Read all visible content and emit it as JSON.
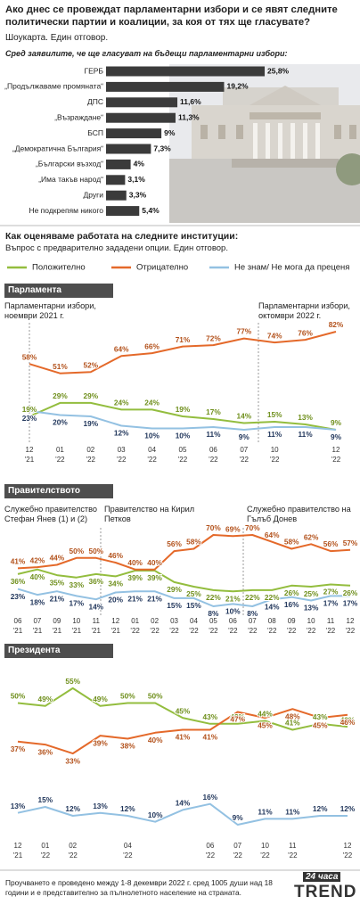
{
  "header": {
    "question": "Ако днес се провеждат парламентарни избори и се явят следните политически партии и коалиции, за коя от тях ще гласувате?",
    "method": "Шоукарта. Един отговор."
  },
  "section": {
    "title": "Как оценяваме работата на следните институции:",
    "subtitle": "Въпрос с предварително зададени опции. Един отговор."
  },
  "chart_data": [
    {
      "type": "bar",
      "orientation": "horizontal",
      "subtitle": "Сред заявилите, че ще гласуват на бъдещи парламентарни избори:",
      "categories": [
        "ГЕРБ",
        "„Продължаваме промяната“",
        "ДПС",
        "„Възраждане“",
        "БСП",
        "„Демократична България“",
        "„Български възход“",
        "„Има такъв народ“",
        "Други",
        "Не подкрепям никого"
      ],
      "values": [
        25.8,
        19.2,
        11.6,
        11.3,
        9,
        7.3,
        4,
        3.1,
        3.3,
        5.4
      ],
      "value_labels": [
        "25,8%",
        "19,2%",
        "11,6%",
        "11,3%",
        "9%",
        "7,3%",
        "4%",
        "3,1%",
        "3,3%",
        "5,4%"
      ],
      "color": "#3b3b3b"
    },
    {
      "type": "line",
      "title": "Парламента",
      "annotations": [
        "Парламентарни избори, ноември 2021 г.",
        "Парламентарни избори, октомври 2022 г."
      ],
      "categories": [
        "12 '21",
        "01 '22",
        "02 '22",
        "03 '22",
        "04 '22",
        "05 '22",
        "06 '22",
        "07 '22",
        "10 '22",
        null,
        "12 '22"
      ],
      "series": [
        {
          "name": "Положително",
          "color": "#93bd3e",
          "values": [
            19,
            29,
            29,
            24,
            24,
            19,
            17,
            14,
            15,
            13,
            9
          ],
          "value_labels": [
            "19%",
            "29%",
            "29%",
            "24%",
            "24%",
            "19%",
            "17%",
            "14%",
            "15%",
            "13%",
            "9%"
          ]
        },
        {
          "name": "Отрицателно",
          "color": "#e4692a",
          "values": [
            58,
            51,
            52,
            64,
            66,
            71,
            72,
            77,
            74,
            76,
            82
          ],
          "value_labels": [
            "58%",
            "51%",
            "52%",
            "64%",
            "66%",
            "71%",
            "72%",
            "77%",
            "74%",
            "76%",
            "82%"
          ]
        },
        {
          "name": "Не знам/ Не мога да преценя",
          "color": "#93c1e2",
          "values": [
            23,
            20,
            19,
            12,
            10,
            10,
            11,
            9,
            11,
            11,
            9
          ],
          "value_labels": [
            "23%",
            "20%",
            "19%",
            "12%",
            "10%",
            "10%",
            "11%",
            "9%",
            "11%",
            "11%",
            "9%"
          ]
        }
      ]
    },
    {
      "type": "line",
      "title": "Правителството",
      "annotations": [
        "Служебно правителство Стефан Янев (1) и (2)",
        "Правителство на Кирил Петков",
        "Служебно правителство на Гълъб Донев"
      ],
      "categories": [
        "06 '21",
        "07 '21",
        "09 '21",
        "10 '21",
        "11 '21",
        "12 '21",
        "01 '22",
        "02 '22",
        "03 '22",
        "04 '22",
        "05 '22",
        "06 '22",
        "07 '22",
        "08 '22",
        "09 '22",
        "10 '22",
        "11 '22",
        "12 '22"
      ],
      "series": [
        {
          "color": "#93bd3e",
          "values": [
            36,
            40,
            35,
            33,
            36,
            34,
            39,
            39,
            29,
            25,
            22,
            21,
            22,
            22,
            26,
            25,
            27,
            26
          ],
          "value_labels": [
            "36%",
            "40%",
            "35%",
            "33%",
            "36%",
            "34%",
            "39%",
            "39%",
            "29%",
            "25%",
            "22%",
            "21%",
            "22%",
            "22%",
            "26%",
            "25%",
            "27%",
            "26%"
          ]
        },
        {
          "color": "#e4692a",
          "values": [
            41,
            42,
            44,
            50,
            50,
            46,
            40,
            40,
            56,
            58,
            70,
            69,
            70,
            64,
            58,
            62,
            56,
            57
          ],
          "value_labels": [
            "41%",
            "42%",
            "44%",
            "50%",
            "50%",
            "46%",
            "40%",
            "40%",
            "56%",
            "58%",
            "70%",
            "69%",
            "70%",
            "64%",
            "58%",
            "62%",
            "56%",
            "57%"
          ]
        },
        {
          "color": "#93c1e2",
          "values": [
            23,
            18,
            21,
            17,
            14,
            20,
            21,
            21,
            15,
            15,
            8,
            10,
            8,
            14,
            16,
            13,
            17,
            17
          ],
          "value_labels": [
            "23%",
            "18%",
            "21%",
            "17%",
            "14%",
            "20%",
            "21%",
            "21%",
            "15%",
            "15%",
            "8%",
            "10%",
            "8%",
            "14%",
            "16%",
            "13%",
            "17%",
            "17%"
          ]
        }
      ]
    },
    {
      "type": "line",
      "title": "Президента",
      "categories": [
        "12 '21",
        "01 '22",
        "02 '22",
        null,
        "04 '22",
        null,
        null,
        "06 '22",
        "07 '22",
        "10 '22",
        "11 '22",
        null,
        "12 '22"
      ],
      "series": [
        {
          "color": "#93bd3e",
          "values": [
            50,
            49,
            55,
            49,
            50,
            50,
            45,
            43,
            43,
            44,
            41,
            43,
            42
          ],
          "value_labels": [
            "50%",
            "49%",
            "55%",
            "49%",
            "50%",
            "50%",
            "45%",
            "43%",
            "43%",
            "44%",
            "41%",
            "43%",
            "42%"
          ]
        },
        {
          "color": "#e4692a",
          "values": [
            37,
            36,
            33,
            39,
            38,
            40,
            41,
            41,
            47,
            45,
            48,
            45,
            46
          ],
          "value_labels": [
            "37%",
            "36%",
            "33%",
            "39%",
            "38%",
            "40%",
            "41%",
            "41%",
            "47%",
            "45%",
            "48%",
            "45%",
            "46%"
          ]
        },
        {
          "color": "#93c1e2",
          "values": [
            13,
            15,
            12,
            13,
            12,
            10,
            14,
            16,
            9,
            11,
            11,
            12,
            12
          ],
          "value_labels": [
            "13%",
            "15%",
            "12%",
            "13%",
            "12%",
            "10%",
            "14%",
            "16%",
            "9%",
            "11%",
            "11%",
            "12%",
            "12%"
          ]
        }
      ]
    }
  ],
  "footer": {
    "note": "Проучването е проведено между 1-8 декември 2022 г. сред 1005 души над 18 години и е представително за пълнолетното население на страната.",
    "logo_top": "24 часа",
    "logo_main": "TREND"
  }
}
